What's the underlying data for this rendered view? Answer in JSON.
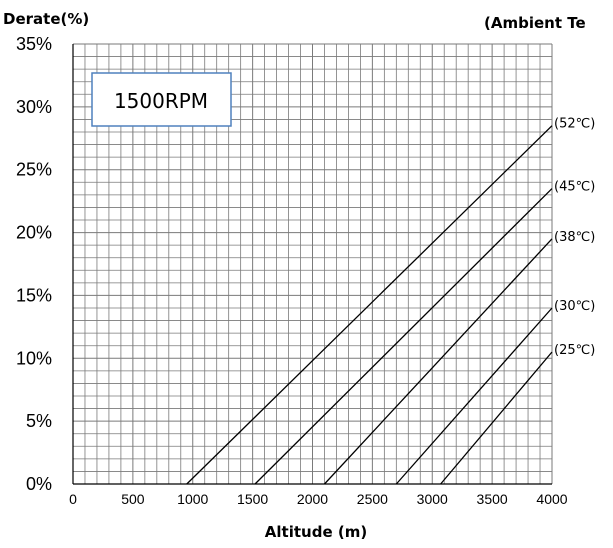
{
  "chart_data": {
    "type": "line",
    "title": "",
    "ylabel": "Derate(%)",
    "xlabel": "Altitude (m)",
    "legend_title": "(Ambient Te",
    "annotation": "1500RPM",
    "xlim": [
      0,
      4000
    ],
    "ylim": [
      0,
      35
    ],
    "x_ticks": [
      "0",
      "500",
      "1000",
      "1500",
      "2000",
      "2500",
      "3000",
      "3500",
      "4000"
    ],
    "y_ticks": [
      "0%",
      "5%",
      "10%",
      "15%",
      "20%",
      "25%",
      "30%",
      "35%"
    ],
    "x_tick_values": [
      0,
      500,
      1000,
      1500,
      2000,
      2500,
      3000,
      3500,
      4000
    ],
    "y_tick_values": [
      0,
      5,
      10,
      15,
      20,
      25,
      30,
      35
    ],
    "grid": true,
    "series": [
      {
        "name": "(52℃)",
        "x": [
          950,
          4000
        ],
        "y": [
          0,
          28.5
        ]
      },
      {
        "name": "(45℃)",
        "x": [
          1520,
          4000
        ],
        "y": [
          0,
          23.5
        ]
      },
      {
        "name": "(38℃)",
        "x": [
          2100,
          4000
        ],
        "y": [
          0,
          19.5
        ]
      },
      {
        "name": "(30℃)",
        "x": [
          2700,
          4000
        ],
        "y": [
          0,
          14.0
        ]
      },
      {
        "name": "(25℃)",
        "x": [
          3070,
          4000
        ],
        "y": [
          0,
          10.5
        ]
      }
    ]
  }
}
